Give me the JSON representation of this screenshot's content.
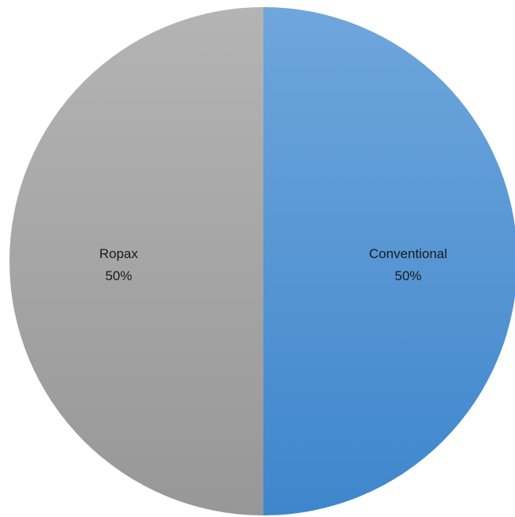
{
  "chart_data": {
    "type": "pie",
    "title": "",
    "slices": [
      {
        "label": "Conventional",
        "value": 50,
        "percent_label": "50%",
        "color": "#4a8fd3"
      },
      {
        "label": "Ropax",
        "value": 50,
        "percent_label": "50%",
        "color": "#a5a5a5"
      }
    ],
    "start_angle_deg": 0,
    "direction": "clockwise",
    "legend": "none"
  }
}
